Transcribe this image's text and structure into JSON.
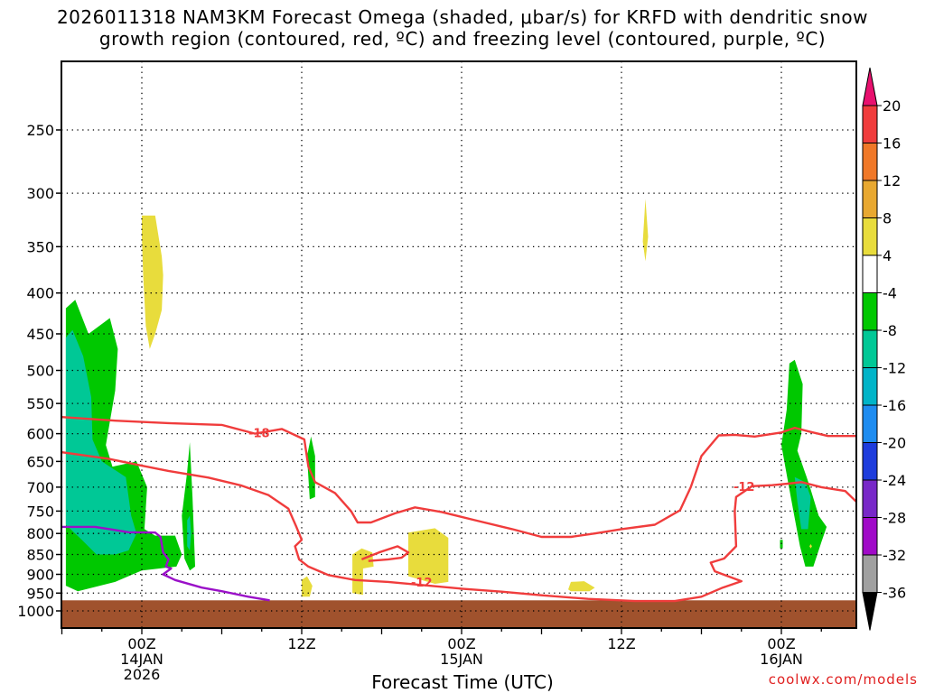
{
  "header": {
    "title_line1": "2026011318 NAM3KM Forecast Omega (shaded, μbar/s) for KRFD with dendritic snow",
    "title_line2": "growth region (contoured, red, ºC) and freezing level (contoured, purple, ºC)"
  },
  "footer": {
    "xlabel": "Forecast Time (UTC)",
    "credit": "coolwx.com/models"
  },
  "chart_data": {
    "type": "heatmap",
    "title": "2026011318 NAM3KM Forecast Omega (shaded, μbar/s) for KRFD with dendritic snow growth region (contoured, red, ºC) and freezing level (contoured, purple, ºC)",
    "xlabel": "Forecast Time (UTC)",
    "ylabel": "",
    "y_log_pressure": true,
    "y_ticks": [
      250,
      300,
      350,
      400,
      450,
      500,
      550,
      600,
      650,
      700,
      750,
      800,
      850,
      900,
      950,
      1000
    ],
    "x_ticks": [
      {
        "hours": 6,
        "label": "00Z",
        "sub1": "14JAN",
        "sub2": "2026"
      },
      {
        "hours": 18,
        "label": "12Z",
        "sub1": "",
        "sub2": ""
      },
      {
        "hours": 30,
        "label": "00Z",
        "sub1": "15JAN",
        "sub2": ""
      },
      {
        "hours": 42,
        "label": "12Z",
        "sub1": "",
        "sub2": ""
      },
      {
        "hours": 54,
        "label": "00Z",
        "sub1": "16JAN",
        "sub2": ""
      }
    ],
    "grid": true,
    "colorbar": {
      "labels": [
        "20",
        "16",
        "12",
        "8",
        "4",
        "-4",
        "-8",
        "-12",
        "-16",
        "-20",
        "-24",
        "-28",
        "-32",
        "-36"
      ],
      "colors": [
        "#e8106e",
        "#f03c3c",
        "#f07828",
        "#e8a830",
        "#e8dc3c",
        "#ffffff",
        "#00c800",
        "#00c896",
        "#00b4c8",
        "#1e8cf0",
        "#1e3cdc",
        "#7828c8",
        "#a00ac8",
        "#a0a0a0",
        "#000000"
      ]
    },
    "omega_regions": [
      {
        "level": "-4",
        "color": "#00c800",
        "points": [
          [
            0.3,
            930
          ],
          [
            0.3,
            418
          ],
          [
            1.0,
            408
          ],
          [
            2.0,
            450
          ],
          [
            3.6,
            430
          ],
          [
            4.2,
            470
          ],
          [
            4.0,
            530
          ],
          [
            3.3,
            620
          ],
          [
            3.8,
            660
          ],
          [
            5.6,
            650
          ],
          [
            6.4,
            700
          ],
          [
            6.2,
            790
          ],
          [
            7.0,
            805
          ],
          [
            8.5,
            805
          ],
          [
            9.0,
            850
          ],
          [
            8.6,
            880
          ],
          [
            6.0,
            890
          ],
          [
            4.0,
            920
          ],
          [
            1.2,
            945
          ]
        ]
      },
      {
        "level": "-8",
        "color": "#00c896",
        "points": [
          [
            0.3,
            780
          ],
          [
            0.3,
            455
          ],
          [
            0.8,
            445
          ],
          [
            1.6,
            480
          ],
          [
            2.2,
            540
          ],
          [
            2.3,
            610
          ],
          [
            3.0,
            650
          ],
          [
            4.8,
            680
          ],
          [
            5.2,
            760
          ],
          [
            5.6,
            800
          ],
          [
            5.0,
            840
          ],
          [
            4.0,
            850
          ],
          [
            2.6,
            850
          ],
          [
            1.5,
            815
          ]
        ]
      },
      {
        "level": "-4",
        "color": "#00c800",
        "points": [
          [
            9.2,
            860
          ],
          [
            9.0,
            760
          ],
          [
            9.4,
            670
          ],
          [
            9.6,
            615
          ],
          [
            9.8,
            720
          ],
          [
            10.0,
            880
          ],
          [
            9.6,
            890
          ]
        ]
      },
      {
        "level": "-8",
        "color": "#00c896",
        "points": [
          [
            9.4,
            830
          ],
          [
            9.4,
            770
          ],
          [
            9.6,
            760
          ],
          [
            9.7,
            800
          ],
          [
            9.6,
            840
          ]
        ]
      },
      {
        "level": "-4",
        "color": "#00c800",
        "points": [
          [
            18.6,
            725
          ],
          [
            18.4,
            640
          ],
          [
            18.7,
            605
          ],
          [
            19.0,
            640
          ],
          [
            19.0,
            720
          ]
        ]
      },
      {
        "level": "-4",
        "color": "#00c800",
        "points": [
          [
            54.4,
            560
          ],
          [
            54.6,
            490
          ],
          [
            55.0,
            485
          ],
          [
            55.6,
            520
          ],
          [
            55.5,
            600
          ],
          [
            55.2,
            630
          ],
          [
            55.9,
            680
          ],
          [
            56.2,
            705
          ],
          [
            56.8,
            760
          ],
          [
            57.4,
            785
          ],
          [
            57.0,
            820
          ],
          [
            56.4,
            880
          ],
          [
            55.8,
            880
          ],
          [
            55.4,
            830
          ],
          [
            54.9,
            750
          ],
          [
            54.5,
            690
          ],
          [
            54.0,
            620
          ]
        ]
      },
      {
        "level": "-8",
        "color": "#00c896",
        "points": [
          [
            55.0,
            680
          ],
          [
            55.8,
            690
          ],
          [
            56.2,
            720
          ],
          [
            56.0,
            790
          ],
          [
            55.5,
            790
          ],
          [
            55.2,
            730
          ]
        ]
      },
      {
        "level": "-4",
        "color": "#00c800",
        "points": [
          [
            53.9,
            835
          ],
          [
            53.9,
            815
          ],
          [
            54.1,
            815
          ],
          [
            54.1,
            835
          ]
        ]
      },
      {
        "level": "4",
        "color": "#e8dc3c",
        "points": [
          [
            6.0,
            320
          ],
          [
            7.0,
            320
          ],
          [
            7.5,
            360
          ],
          [
            7.6,
            380
          ],
          [
            7.5,
            420
          ],
          [
            7.0,
            450
          ],
          [
            6.6,
            470
          ],
          [
            6.3,
            440
          ],
          [
            6.1,
            380
          ],
          [
            6.0,
            340
          ]
        ]
      },
      {
        "level": "4",
        "color": "#e8dc3c",
        "points": [
          [
            43.6,
            345
          ],
          [
            43.8,
            305
          ],
          [
            44.0,
            340
          ],
          [
            43.8,
            365
          ]
        ]
      },
      {
        "level": "4",
        "color": "#e8dc3c",
        "points": [
          [
            26.0,
            905
          ],
          [
            26.0,
            798
          ],
          [
            28.0,
            788
          ],
          [
            29.0,
            810
          ],
          [
            29.0,
            920
          ],
          [
            28.0,
            925
          ]
        ]
      },
      {
        "level": "4",
        "color": "#e8dc3c",
        "points": [
          [
            21.8,
            950
          ],
          [
            21.8,
            850
          ],
          [
            22.5,
            835
          ],
          [
            23.3,
            845
          ],
          [
            23.4,
            880
          ],
          [
            22.6,
            885
          ],
          [
            22.6,
            955
          ]
        ]
      },
      {
        "level": "4",
        "color": "#e8dc3c",
        "points": [
          [
            18.0,
            960
          ],
          [
            18.0,
            915
          ],
          [
            18.4,
            905
          ],
          [
            18.8,
            930
          ],
          [
            18.6,
            960
          ]
        ]
      },
      {
        "level": "4",
        "color": "#e8dc3c",
        "points": [
          [
            38.0,
            940
          ],
          [
            38.2,
            920
          ],
          [
            39.2,
            918
          ],
          [
            40.0,
            935
          ],
          [
            39.6,
            945
          ],
          [
            38.2,
            945
          ]
        ]
      },
      {
        "level": "4",
        "color": "#e8dc3c",
        "points": [
          [
            56.1,
            830
          ],
          [
            56.2,
            825
          ],
          [
            56.3,
            830
          ],
          [
            56.2,
            835
          ]
        ]
      }
    ],
    "dgz_contours": [
      {
        "label": "-18",
        "color": "#f03c3c",
        "label_at": [
          14.8,
          600
        ],
        "points": [
          [
            0,
            572
          ],
          [
            4.0,
            578
          ],
          [
            8.0,
            582
          ],
          [
            12.0,
            585
          ],
          [
            14.5,
            600
          ],
          [
            16.5,
            592
          ],
          [
            18.2,
            610
          ],
          [
            18.5,
            660
          ],
          [
            19.0,
            690
          ],
          [
            20.5,
            712
          ],
          [
            21.7,
            750
          ],
          [
            22.2,
            775
          ],
          [
            23.2,
            775
          ],
          [
            25.0,
            755
          ],
          [
            26.5,
            742
          ],
          [
            28.5,
            752
          ],
          [
            31.0,
            770
          ],
          [
            33.8,
            790
          ],
          [
            36.0,
            808
          ],
          [
            38.2,
            808
          ],
          [
            40.0,
            800
          ],
          [
            42.0,
            790
          ],
          [
            44.5,
            780
          ],
          [
            46.4,
            748
          ],
          [
            47.2,
            700
          ],
          [
            48.0,
            640
          ],
          [
            49.3,
            603
          ],
          [
            50.5,
            602
          ],
          [
            52.0,
            605
          ],
          [
            54.0,
            598
          ],
          [
            55.0,
            590
          ],
          [
            56.2,
            597
          ],
          [
            57.5,
            604
          ],
          [
            60,
            604
          ]
        ]
      },
      {
        "label": "-12",
        "color": "#f03c3c",
        "label_at": [
          51.2,
          700
        ],
        "points": [
          [
            0,
            633
          ],
          [
            3.5,
            645
          ],
          [
            6.0,
            658
          ],
          [
            8.0,
            668
          ],
          [
            11.0,
            681
          ],
          [
            13.5,
            697
          ],
          [
            15.5,
            716
          ],
          [
            17.0,
            745
          ],
          [
            17.6,
            785
          ],
          [
            18.0,
            815
          ],
          [
            17.5,
            830
          ],
          [
            17.8,
            862
          ],
          [
            18.5,
            880
          ],
          [
            20.0,
            902
          ],
          [
            22.0,
            915
          ],
          [
            24.5,
            920
          ],
          [
            27.0,
            928
          ],
          [
            30.0,
            938
          ],
          [
            33.0,
            946
          ],
          [
            36.0,
            956
          ],
          [
            39.5,
            966
          ],
          [
            43.0,
            972
          ],
          [
            46.0,
            972
          ],
          [
            48.0,
            960
          ],
          [
            49.6,
            935
          ],
          [
            51.0,
            918
          ],
          [
            50.0,
            905
          ],
          [
            49.0,
            892
          ],
          [
            48.7,
            870
          ],
          [
            49.7,
            860
          ],
          [
            50.6,
            830
          ],
          [
            50.5,
            750
          ],
          [
            50.6,
            720
          ],
          [
            51.8,
            698
          ],
          [
            53.3,
            696
          ],
          [
            54.5,
            693
          ],
          [
            55.5,
            690
          ],
          [
            57.0,
            700
          ],
          [
            58.8,
            708
          ],
          [
            60,
            730
          ]
        ]
      },
      {
        "label": "-12",
        "color": "#f03c3c",
        "label_at": [
          27.0,
          923
        ],
        "points": [
          [
            22.5,
            862
          ],
          [
            23.8,
            845
          ],
          [
            25.2,
            830
          ],
          [
            26.0,
            845
          ],
          [
            25.5,
            858
          ],
          [
            24.5,
            862
          ],
          [
            23.0,
            866
          ]
        ]
      }
    ],
    "freezing_level": [
      [
        0,
        785
      ],
      [
        2.5,
        785
      ],
      [
        5.0,
        797
      ],
      [
        7.0,
        798
      ],
      [
        7.4,
        808
      ],
      [
        7.6,
        845
      ],
      [
        8.0,
        862
      ],
      [
        7.8,
        880
      ],
      [
        8.2,
        885
      ],
      [
        7.6,
        900
      ],
      [
        8.5,
        915
      ],
      [
        10.5,
        935
      ],
      [
        12.0,
        945
      ],
      [
        14.0,
        960
      ],
      [
        15.6,
        970
      ]
    ],
    "terrain_top_pressure": 970
  }
}
